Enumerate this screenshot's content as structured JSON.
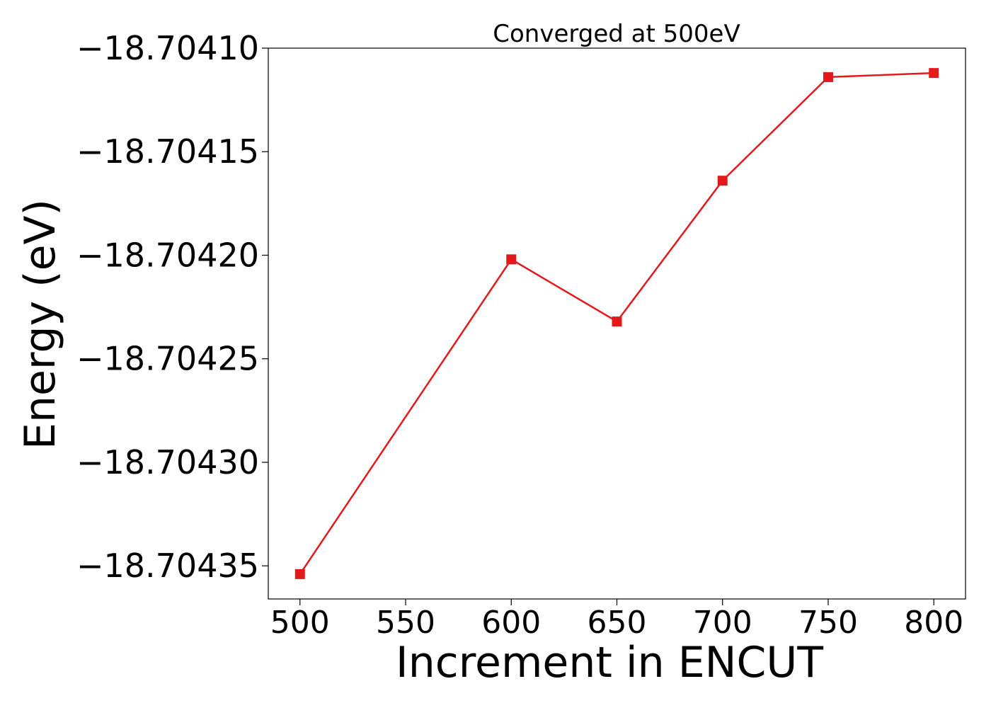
{
  "chart_data": {
    "type": "line",
    "title": "Converged at 500eV",
    "xlabel": "Increment in ENCUT",
    "ylabel": "Energy (eV)",
    "x": [
      500,
      600,
      650,
      700,
      750,
      800
    ],
    "series": [
      {
        "values": [
          -18.704354,
          -18.704202,
          -18.704232,
          -18.704164,
          -18.704114,
          -18.704112
        ],
        "color": "#e31a1c",
        "marker": "square"
      }
    ],
    "xlim": [
      485,
      815
    ],
    "ylim": [
      -18.704366,
      -18.7041
    ],
    "xticks": [
      500,
      550,
      600,
      650,
      700,
      750,
      800
    ],
    "yticks": [
      -18.7041,
      -18.70415,
      -18.7042,
      -18.70425,
      -18.7043,
      -18.70435
    ],
    "xtick_labels": [
      "500",
      "550",
      "600",
      "650",
      "700",
      "750",
      "800"
    ],
    "ytick_labels": [
      "−18.70410",
      "−18.70415",
      "−18.70420",
      "−18.70425",
      "−18.70430",
      "−18.70435"
    ],
    "grid": false,
    "legend": "none"
  }
}
